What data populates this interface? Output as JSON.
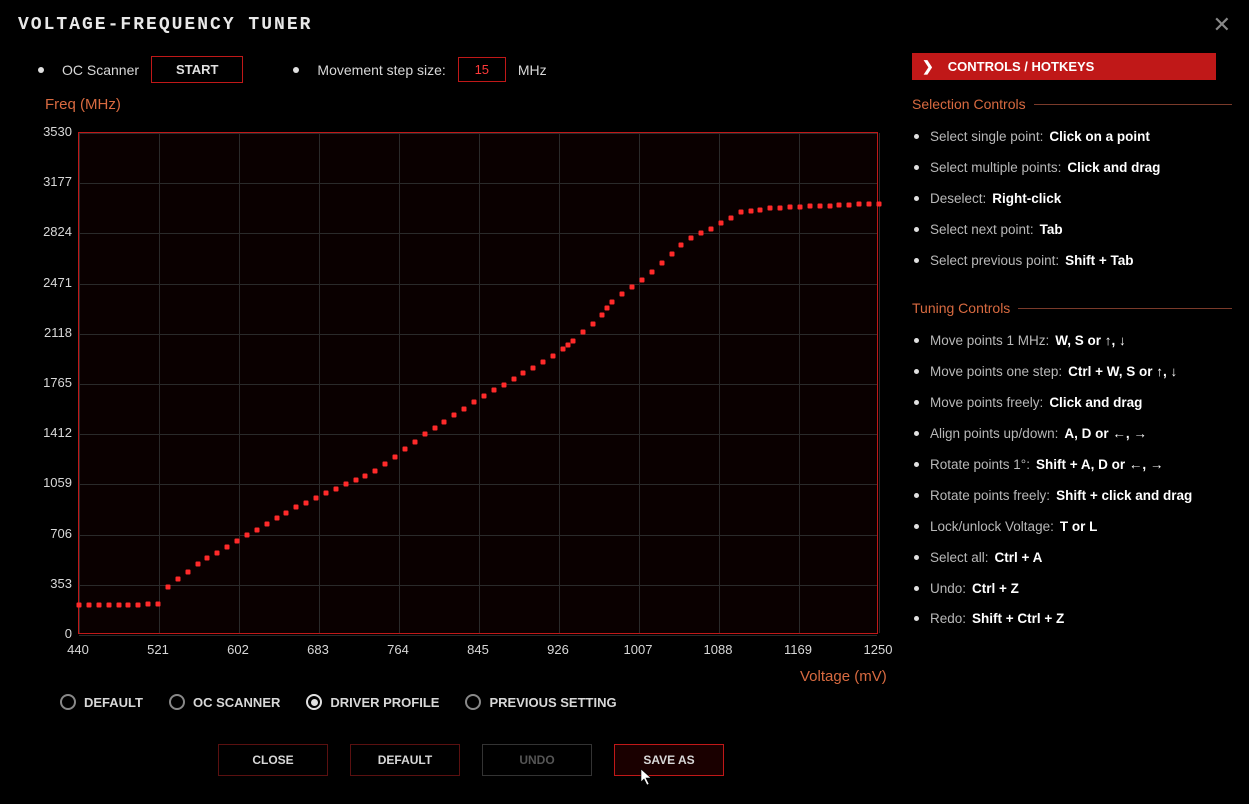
{
  "title": "VOLTAGE-FREQUENCY TUNER",
  "topbar": {
    "oc_scanner_label": "OC Scanner",
    "start_label": "START",
    "step_label": "Movement step size:",
    "step_value": "15",
    "step_unit": "MHz"
  },
  "chart": {
    "type": "line",
    "y_label": "Freq (MHz)",
    "x_label": "Voltage (mV)",
    "xlim": [
      440,
      1250
    ],
    "ylim": [
      0,
      3530
    ],
    "yticks": [
      0,
      353,
      706,
      1059,
      1412,
      1765,
      2118,
      2471,
      2824,
      3177,
      3530
    ],
    "xticks": [
      440,
      521,
      602,
      683,
      764,
      845,
      926,
      1007,
      1088,
      1169,
      1250
    ],
    "grid_color": "#2a2a2a",
    "border_color": "#c01818",
    "background_color": "#0a0000",
    "line_color": "#ff2a2a",
    "points": [
      [
        440,
        210
      ],
      [
        450,
        210
      ],
      [
        460,
        210
      ],
      [
        470,
        210
      ],
      [
        480,
        210
      ],
      [
        490,
        210
      ],
      [
        500,
        210
      ],
      [
        510,
        215
      ],
      [
        520,
        215
      ],
      [
        530,
        340
      ],
      [
        540,
        395
      ],
      [
        550,
        445
      ],
      [
        560,
        500
      ],
      [
        570,
        540
      ],
      [
        580,
        580
      ],
      [
        590,
        620
      ],
      [
        600,
        660
      ],
      [
        610,
        700
      ],
      [
        620,
        740
      ],
      [
        630,
        780
      ],
      [
        640,
        820
      ],
      [
        650,
        860
      ],
      [
        660,
        900
      ],
      [
        670,
        930
      ],
      [
        680,
        965
      ],
      [
        690,
        1000
      ],
      [
        700,
        1030
      ],
      [
        710,
        1060
      ],
      [
        720,
        1090
      ],
      [
        730,
        1120
      ],
      [
        740,
        1155
      ],
      [
        750,
        1200
      ],
      [
        760,
        1255
      ],
      [
        770,
        1310
      ],
      [
        780,
        1360
      ],
      [
        790,
        1410
      ],
      [
        800,
        1455
      ],
      [
        810,
        1500
      ],
      [
        820,
        1545
      ],
      [
        830,
        1590
      ],
      [
        840,
        1635
      ],
      [
        850,
        1680
      ],
      [
        860,
        1720
      ],
      [
        870,
        1760
      ],
      [
        880,
        1800
      ],
      [
        890,
        1840
      ],
      [
        900,
        1880
      ],
      [
        910,
        1920
      ],
      [
        920,
        1965
      ],
      [
        930,
        2010
      ],
      [
        935,
        2040
      ],
      [
        940,
        2070
      ],
      [
        950,
        2130
      ],
      [
        960,
        2190
      ],
      [
        970,
        2250
      ],
      [
        975,
        2300
      ],
      [
        980,
        2345
      ],
      [
        990,
        2395
      ],
      [
        1000,
        2445
      ],
      [
        1010,
        2495
      ],
      [
        1020,
        2555
      ],
      [
        1030,
        2615
      ],
      [
        1040,
        2680
      ],
      [
        1050,
        2745
      ],
      [
        1060,
        2795
      ],
      [
        1070,
        2825
      ],
      [
        1080,
        2855
      ],
      [
        1090,
        2895
      ],
      [
        1100,
        2935
      ],
      [
        1110,
        2975
      ],
      [
        1120,
        2985
      ],
      [
        1130,
        2992
      ],
      [
        1140,
        3000
      ],
      [
        1150,
        3005
      ],
      [
        1160,
        3008
      ],
      [
        1170,
        3010
      ],
      [
        1180,
        3015
      ],
      [
        1190,
        3018
      ],
      [
        1200,
        3020
      ],
      [
        1210,
        3022
      ],
      [
        1220,
        3025
      ],
      [
        1230,
        3028
      ],
      [
        1240,
        3030
      ],
      [
        1250,
        3032
      ]
    ]
  },
  "profiles": {
    "options": [
      "DEFAULT",
      "OC SCANNER",
      "DRIVER PROFILE",
      "PREVIOUS SETTING"
    ],
    "selected_index": 2
  },
  "buttons": {
    "close": "CLOSE",
    "default": "DEFAULT",
    "undo": "UNDO",
    "save_as": "SAVE AS"
  },
  "panel": {
    "header": "CONTROLS / HOTKEYS",
    "sections": [
      {
        "title": "Selection Controls",
        "items": [
          {
            "label": "Select single point:",
            "value": "Click on a point"
          },
          {
            "label": "Select multiple points:",
            "value": "Click and drag"
          },
          {
            "label": "Deselect:",
            "value": "Right-click"
          },
          {
            "label": "Select next point:",
            "value": "Tab"
          },
          {
            "label": "Select previous point:",
            "value": "Shift + Tab"
          }
        ]
      },
      {
        "title": "Tuning Controls",
        "items": [
          {
            "label": "Move points 1 MHz:",
            "value": "W, S or ↑, ↓"
          },
          {
            "label": "Move points one step:",
            "value": "Ctrl + W, S or ↑, ↓"
          },
          {
            "label": "Move points freely:",
            "value": "Click and drag"
          },
          {
            "label": "Align points up/down:",
            "value": "A, D or ←, →"
          },
          {
            "label": "Rotate points 1°:",
            "value": "Shift + A, D or ←, →"
          },
          {
            "label": "Rotate points freely:",
            "value": "Shift + click and drag"
          },
          {
            "label": "Lock/unlock Voltage:",
            "value": "T or L"
          },
          {
            "label": "Select all:",
            "value": "Ctrl + A"
          },
          {
            "label": "Undo:",
            "value": "Ctrl + Z"
          },
          {
            "label": "Redo:",
            "value": "Shift + Ctrl + Z"
          }
        ]
      }
    ]
  },
  "colors": {
    "accent_red": "#c01818",
    "text_orange": "#d86a40",
    "bright_red": "#ff2a2a"
  }
}
